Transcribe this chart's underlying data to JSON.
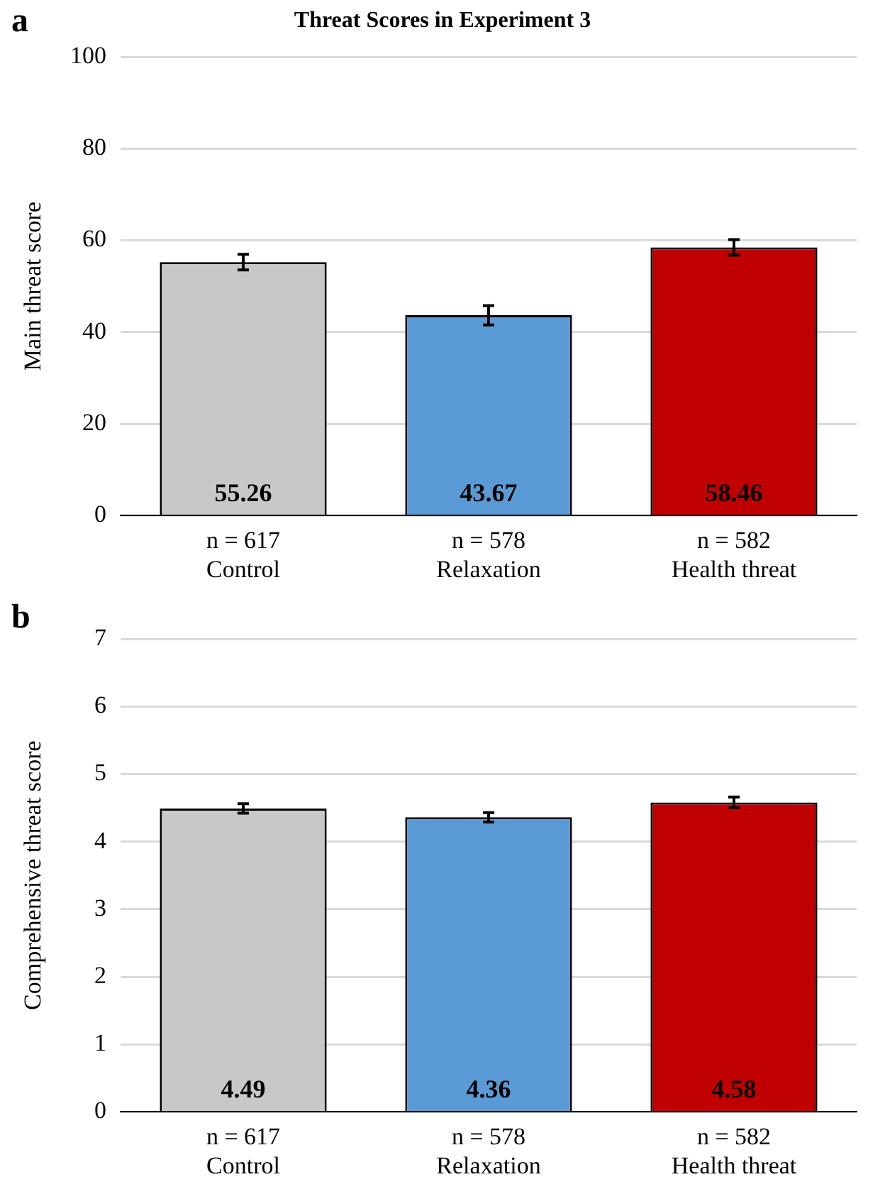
{
  "chart_data": [
    {
      "type": "bar",
      "title": "Threat Scores in Experiment 3",
      "ylabel": "Main threat score",
      "annotations": [
        "a"
      ],
      "categories": [
        "n = 617\nControl",
        "n = 578\nRelaxation",
        "n = 582\nHealth threat"
      ],
      "values": [
        55.26,
        43.67,
        58.46
      ],
      "colors": [
        "#c8c8c8",
        "#5b9bd5",
        "#c00000"
      ],
      "errors": [
        1.7,
        2.1,
        1.7
      ],
      "ylim": [
        0,
        100
      ],
      "yticks": [
        0,
        20,
        40,
        60,
        80,
        100
      ],
      "grid": "y",
      "data_labels": true
    },
    {
      "type": "bar",
      "ylabel": "Comprehensive threat score",
      "annotations": [
        "b"
      ],
      "categories": [
        "n = 617\nControl",
        "n = 578\nRelaxation",
        "n = 582\nHealth threat"
      ],
      "values": [
        4.49,
        4.36,
        4.58
      ],
      "colors": [
        "#c8c8c8",
        "#5b9bd5",
        "#c00000"
      ],
      "errors": [
        0.07,
        0.07,
        0.08
      ],
      "ylim": [
        0,
        7
      ],
      "yticks": [
        0,
        1,
        2,
        3,
        4,
        5,
        6,
        7
      ],
      "grid": "y",
      "data_labels": true
    }
  ]
}
